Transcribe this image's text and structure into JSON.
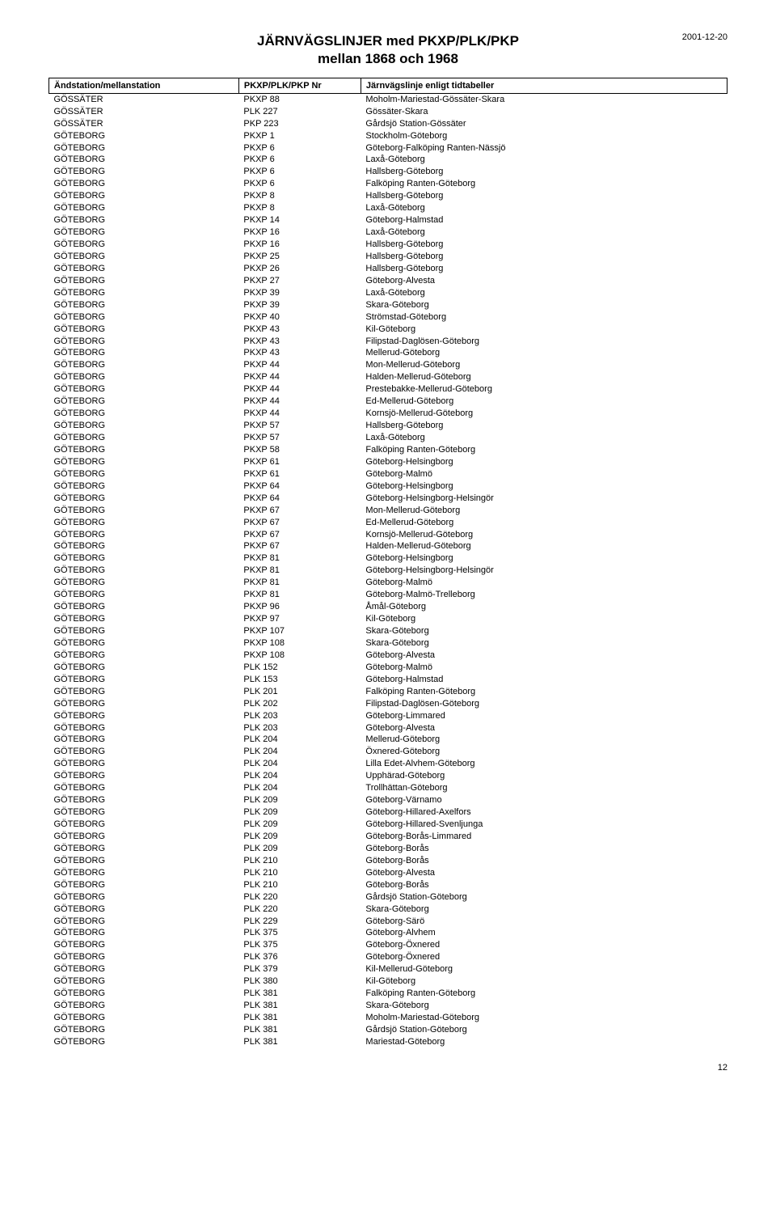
{
  "header": {
    "title_line1": "JÄRNVÄGSLINJER med PKXP/PLK/PKP",
    "title_line2": "mellan 1868 och 1968",
    "date": "2001-12-20"
  },
  "columns": {
    "station": "Ändstation/mellanstation",
    "nr": "PKXP/PLK/PKP Nr",
    "line": "Järnvägslinje enligt tidtabeller"
  },
  "rows": [
    {
      "s": "GÖSSÄTER",
      "n": "PKXP 88",
      "l": "Moholm-Mariestad-Gössäter-Skara"
    },
    {
      "s": "GÖSSÄTER",
      "n": "PLK 227",
      "l": "Gössäter-Skara"
    },
    {
      "s": "GÖSSÄTER",
      "n": "PKP 223",
      "l": "Gårdsjö Station-Gössäter"
    },
    {
      "s": "GÖTEBORG",
      "n": "PKXP 1",
      "l": "Stockholm-Göteborg"
    },
    {
      "s": "GÖTEBORG",
      "n": "PKXP 6",
      "l": "Göteborg-Falköping Ranten-Nässjö"
    },
    {
      "s": "GÖTEBORG",
      "n": "PKXP 6",
      "l": "Laxå-Göteborg"
    },
    {
      "s": "GÖTEBORG",
      "n": "PKXP 6",
      "l": "Hallsberg-Göteborg"
    },
    {
      "s": "GÖTEBORG",
      "n": "PKXP 6",
      "l": "Falköping Ranten-Göteborg"
    },
    {
      "s": "GÖTEBORG",
      "n": "PKXP 8",
      "l": "Hallsberg-Göteborg"
    },
    {
      "s": "GÖTEBORG",
      "n": "PKXP 8",
      "l": "Laxå-Göteborg"
    },
    {
      "s": "GÖTEBORG",
      "n": "PKXP 14",
      "l": "Göteborg-Halmstad"
    },
    {
      "s": "GÖTEBORG",
      "n": "PKXP 16",
      "l": "Laxå-Göteborg"
    },
    {
      "s": "GÖTEBORG",
      "n": "PKXP 16",
      "l": "Hallsberg-Göteborg"
    },
    {
      "s": "GÖTEBORG",
      "n": "PKXP 25",
      "l": "Hallsberg-Göteborg"
    },
    {
      "s": "GÖTEBORG",
      "n": "PKXP 26",
      "l": "Hallsberg-Göteborg"
    },
    {
      "s": "GÖTEBORG",
      "n": "PKXP 27",
      "l": "Göteborg-Alvesta"
    },
    {
      "s": "GÖTEBORG",
      "n": "PKXP 39",
      "l": "Laxå-Göteborg"
    },
    {
      "s": "GÖTEBORG",
      "n": "PKXP 39",
      "l": "Skara-Göteborg"
    },
    {
      "s": "GÖTEBORG",
      "n": "PKXP 40",
      "l": "Strömstad-Göteborg"
    },
    {
      "s": "GÖTEBORG",
      "n": "PKXP 43",
      "l": "Kil-Göteborg"
    },
    {
      "s": "GÖTEBORG",
      "n": "PKXP 43",
      "l": "Filipstad-Daglösen-Göteborg"
    },
    {
      "s": "GÖTEBORG",
      "n": "PKXP 43",
      "l": "Mellerud-Göteborg"
    },
    {
      "s": "GÖTEBORG",
      "n": "PKXP 44",
      "l": "Mon-Mellerud-Göteborg"
    },
    {
      "s": "GÖTEBORG",
      "n": "PKXP 44",
      "l": "Halden-Mellerud-Göteborg"
    },
    {
      "s": "GÖTEBORG",
      "n": "PKXP 44",
      "l": "Prestebakke-Mellerud-Göteborg"
    },
    {
      "s": "GÖTEBORG",
      "n": "PKXP 44",
      "l": "Ed-Mellerud-Göteborg"
    },
    {
      "s": "GÖTEBORG",
      "n": "PKXP 44",
      "l": "Kornsjö-Mellerud-Göteborg"
    },
    {
      "s": "GÖTEBORG",
      "n": "PKXP 57",
      "l": "Hallsberg-Göteborg"
    },
    {
      "s": "GÖTEBORG",
      "n": "PKXP 57",
      "l": "Laxå-Göteborg"
    },
    {
      "s": "GÖTEBORG",
      "n": "PKXP 58",
      "l": "Falköping Ranten-Göteborg"
    },
    {
      "s": "GÖTEBORG",
      "n": "PKXP 61",
      "l": "Göteborg-Helsingborg"
    },
    {
      "s": "GÖTEBORG",
      "n": "PKXP 61",
      "l": "Göteborg-Malmö"
    },
    {
      "s": "GÖTEBORG",
      "n": "PKXP 64",
      "l": "Göteborg-Helsingborg"
    },
    {
      "s": "GÖTEBORG",
      "n": "PKXP 64",
      "l": "Göteborg-Helsingborg-Helsingör"
    },
    {
      "s": "GÖTEBORG",
      "n": "PKXP 67",
      "l": "Mon-Mellerud-Göteborg"
    },
    {
      "s": "GÖTEBORG",
      "n": "PKXP 67",
      "l": "Ed-Mellerud-Göteborg"
    },
    {
      "s": "GÖTEBORG",
      "n": "PKXP 67",
      "l": "Kornsjö-Mellerud-Göteborg"
    },
    {
      "s": "GÖTEBORG",
      "n": "PKXP 67",
      "l": "Halden-Mellerud-Göteborg"
    },
    {
      "s": "GÖTEBORG",
      "n": "PKXP 81",
      "l": "Göteborg-Helsingborg"
    },
    {
      "s": "GÖTEBORG",
      "n": "PKXP 81",
      "l": "Göteborg-Helsingborg-Helsingör"
    },
    {
      "s": "GÖTEBORG",
      "n": "PKXP 81",
      "l": "Göteborg-Malmö"
    },
    {
      "s": "GÖTEBORG",
      "n": "PKXP 81",
      "l": "Göteborg-Malmö-Trelleborg"
    },
    {
      "s": "GÖTEBORG",
      "n": "PKXP 96",
      "l": "Åmål-Göteborg"
    },
    {
      "s": "GÖTEBORG",
      "n": "PKXP 97",
      "l": "Kil-Göteborg"
    },
    {
      "s": "GÖTEBORG",
      "n": "PKXP 107",
      "l": "Skara-Göteborg"
    },
    {
      "s": "GÖTEBORG",
      "n": "PKXP 108",
      "l": "Skara-Göteborg"
    },
    {
      "s": "GÖTEBORG",
      "n": "PKXP 108",
      "l": "Göteborg-Alvesta"
    },
    {
      "s": "GÖTEBORG",
      "n": "PLK 152",
      "l": "Göteborg-Malmö"
    },
    {
      "s": "GÖTEBORG",
      "n": "PLK 153",
      "l": "Göteborg-Halmstad"
    },
    {
      "s": "GÖTEBORG",
      "n": "PLK 201",
      "l": "Falköping Ranten-Göteborg"
    },
    {
      "s": "GÖTEBORG",
      "n": "PLK 202",
      "l": "Filipstad-Daglösen-Göteborg"
    },
    {
      "s": "GÖTEBORG",
      "n": "PLK 203",
      "l": "Göteborg-Limmared"
    },
    {
      "s": "GÖTEBORG",
      "n": "PLK 203",
      "l": "Göteborg-Alvesta"
    },
    {
      "s": "GÖTEBORG",
      "n": "PLK 204",
      "l": "Mellerud-Göteborg"
    },
    {
      "s": "GÖTEBORG",
      "n": "PLK 204",
      "l": "Öxnered-Göteborg"
    },
    {
      "s": "GÖTEBORG",
      "n": "PLK 204",
      "l": "Lilla Edet-Alvhem-Göteborg"
    },
    {
      "s": "GÖTEBORG",
      "n": "PLK 204",
      "l": "Upphärad-Göteborg"
    },
    {
      "s": "GÖTEBORG",
      "n": "PLK 204",
      "l": "Trollhättan-Göteborg"
    },
    {
      "s": "GÖTEBORG",
      "n": "PLK 209",
      "l": "Göteborg-Värnamo"
    },
    {
      "s": "GÖTEBORG",
      "n": "PLK 209",
      "l": "Göteborg-Hillared-Axelfors"
    },
    {
      "s": "GÖTEBORG",
      "n": "PLK 209",
      "l": "Göteborg-Hillared-Svenljunga"
    },
    {
      "s": "GÖTEBORG",
      "n": "PLK 209",
      "l": "Göteborg-Borås-Limmared"
    },
    {
      "s": "GÖTEBORG",
      "n": "PLK 209",
      "l": "Göteborg-Borås"
    },
    {
      "s": "GÖTEBORG",
      "n": "PLK 210",
      "l": "Göteborg-Borås"
    },
    {
      "s": "GÖTEBORG",
      "n": "PLK 210",
      "l": "Göteborg-Alvesta"
    },
    {
      "s": "GÖTEBORG",
      "n": "PLK 210",
      "l": "Göteborg-Borås"
    },
    {
      "s": "GÖTEBORG",
      "n": "PLK 220",
      "l": "Gårdsjö Station-Göteborg"
    },
    {
      "s": "GÖTEBORG",
      "n": "PLK 220",
      "l": "Skara-Göteborg"
    },
    {
      "s": "GÖTEBORG",
      "n": "PLK 229",
      "l": "Göteborg-Särö"
    },
    {
      "s": "GÖTEBORG",
      "n": "PLK 375",
      "l": "Göteborg-Alvhem"
    },
    {
      "s": "GÖTEBORG",
      "n": "PLK 375",
      "l": "Göteborg-Öxnered"
    },
    {
      "s": "GÖTEBORG",
      "n": "PLK 376",
      "l": "Göteborg-Öxnered"
    },
    {
      "s": "GÖTEBORG",
      "n": "PLK 379",
      "l": "Kil-Mellerud-Göteborg"
    },
    {
      "s": "GÖTEBORG",
      "n": "PLK 380",
      "l": "Kil-Göteborg"
    },
    {
      "s": "GÖTEBORG",
      "n": "PLK 381",
      "l": "Falköping Ranten-Göteborg"
    },
    {
      "s": "GÖTEBORG",
      "n": "PLK 381",
      "l": "Skara-Göteborg"
    },
    {
      "s": "GÖTEBORG",
      "n": "PLK 381",
      "l": "Moholm-Mariestad-Göteborg"
    },
    {
      "s": "GÖTEBORG",
      "n": "PLK 381",
      "l": "Gårdsjö Station-Göteborg"
    },
    {
      "s": "GÖTEBORG",
      "n": "PLK 381",
      "l": "Mariestad-Göteborg"
    }
  ],
  "page_number": "12"
}
